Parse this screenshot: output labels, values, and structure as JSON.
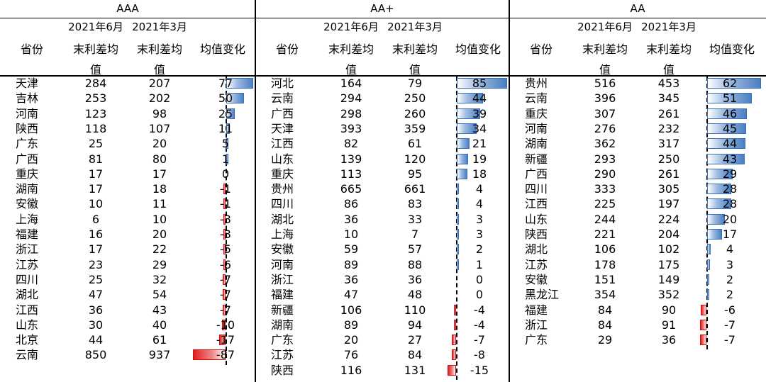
{
  "headers": {
    "date_jun": "2021年6月",
    "date_mar": "2021年3月",
    "province": "省份",
    "spread_1": "末利差均",
    "spread_2": "值",
    "change": "均值变化"
  },
  "colors": {
    "positive": "#4a7fc4",
    "negative": "#e11f1f"
  },
  "chart_data": [
    {
      "type": "table",
      "title": "AAA",
      "columns": [
        "省份",
        "2021年6月 末利差均值",
        "2021年3月 末利差均值",
        "均值变化"
      ],
      "xlim": [
        -87,
        77
      ],
      "rows": [
        {
          "province": "天津",
          "jun": 284,
          "mar": 207,
          "change": 77
        },
        {
          "province": "吉林",
          "jun": 253,
          "mar": 202,
          "change": 50
        },
        {
          "province": "河南",
          "jun": 123,
          "mar": 98,
          "change": 25
        },
        {
          "province": "陕西",
          "jun": 118,
          "mar": 107,
          "change": 11
        },
        {
          "province": "广东",
          "jun": 25,
          "mar": 20,
          "change": 5
        },
        {
          "province": "广西",
          "jun": 81,
          "mar": 80,
          "change": 1
        },
        {
          "province": "重庆",
          "jun": 17,
          "mar": 17,
          "change": 0
        },
        {
          "province": "湖南",
          "jun": 17,
          "mar": 18,
          "change": -1
        },
        {
          "province": "安徽",
          "jun": 10,
          "mar": 11,
          "change": -1
        },
        {
          "province": "上海",
          "jun": 6,
          "mar": 10,
          "change": -3
        },
        {
          "province": "福建",
          "jun": 16,
          "mar": 20,
          "change": -3
        },
        {
          "province": "浙江",
          "jun": 17,
          "mar": 22,
          "change": -5
        },
        {
          "province": "江苏",
          "jun": 23,
          "mar": 29,
          "change": -6
        },
        {
          "province": "四川",
          "jun": 25,
          "mar": 32,
          "change": -7
        },
        {
          "province": "湖北",
          "jun": 47,
          "mar": 54,
          "change": -7
        },
        {
          "province": "江西",
          "jun": 36,
          "mar": 43,
          "change": -7
        },
        {
          "province": "山东",
          "jun": 30,
          "mar": 40,
          "change": -10
        },
        {
          "province": "北京",
          "jun": 44,
          "mar": 61,
          "change": -17
        },
        {
          "province": "云南",
          "jun": 850,
          "mar": 937,
          "change": -87
        }
      ]
    },
    {
      "type": "table",
      "title": "AA+",
      "columns": [
        "省份",
        "2021年6月 末利差均值",
        "2021年3月 末利差均值",
        "均值变化"
      ],
      "xlim": [
        -15,
        85
      ],
      "rows": [
        {
          "province": "河北",
          "jun": 164,
          "mar": 79,
          "change": 85
        },
        {
          "province": "云南",
          "jun": 294,
          "mar": 250,
          "change": 44
        },
        {
          "province": "广西",
          "jun": 298,
          "mar": 260,
          "change": 39
        },
        {
          "province": "天津",
          "jun": 393,
          "mar": 359,
          "change": 34
        },
        {
          "province": "江西",
          "jun": 82,
          "mar": 61,
          "change": 21
        },
        {
          "province": "山东",
          "jun": 139,
          "mar": 120,
          "change": 19
        },
        {
          "province": "重庆",
          "jun": 113,
          "mar": 95,
          "change": 18
        },
        {
          "province": "贵州",
          "jun": 665,
          "mar": 661,
          "change": 4
        },
        {
          "province": "四川",
          "jun": 86,
          "mar": 83,
          "change": 4
        },
        {
          "province": "湖北",
          "jun": 36,
          "mar": 33,
          "change": 3
        },
        {
          "province": "上海",
          "jun": 10,
          "mar": 7,
          "change": 3
        },
        {
          "province": "安徽",
          "jun": 59,
          "mar": 57,
          "change": 2
        },
        {
          "province": "河南",
          "jun": 89,
          "mar": 88,
          "change": 1
        },
        {
          "province": "浙江",
          "jun": 36,
          "mar": 36,
          "change": 0
        },
        {
          "province": "福建",
          "jun": 47,
          "mar": 48,
          "change": 0
        },
        {
          "province": "新疆",
          "jun": 106,
          "mar": 110,
          "change": -4
        },
        {
          "province": "湖南",
          "jun": 89,
          "mar": 94,
          "change": -4
        },
        {
          "province": "广东",
          "jun": 20,
          "mar": 27,
          "change": -7
        },
        {
          "province": "江苏",
          "jun": 76,
          "mar": 84,
          "change": -8
        },
        {
          "province": "陕西",
          "jun": 116,
          "mar": 131,
          "change": -15
        }
      ]
    },
    {
      "type": "table",
      "title": "AA",
      "columns": [
        "省份",
        "2021年6月 末利差均值",
        "2021年3月 末利差均值",
        "均值变化"
      ],
      "xlim": [
        -7,
        62
      ],
      "rows": [
        {
          "province": "贵州",
          "jun": 516,
          "mar": 453,
          "change": 62
        },
        {
          "province": "云南",
          "jun": 396,
          "mar": 345,
          "change": 51
        },
        {
          "province": "重庆",
          "jun": 307,
          "mar": 261,
          "change": 46
        },
        {
          "province": "河南",
          "jun": 276,
          "mar": 232,
          "change": 45
        },
        {
          "province": "湖南",
          "jun": 362,
          "mar": 317,
          "change": 44
        },
        {
          "province": "新疆",
          "jun": 293,
          "mar": 250,
          "change": 43
        },
        {
          "province": "广西",
          "jun": 290,
          "mar": 261,
          "change": 29
        },
        {
          "province": "四川",
          "jun": 333,
          "mar": 305,
          "change": 28
        },
        {
          "province": "江西",
          "jun": 225,
          "mar": 197,
          "change": 28
        },
        {
          "province": "山东",
          "jun": 244,
          "mar": 224,
          "change": 20
        },
        {
          "province": "陕西",
          "jun": 221,
          "mar": 204,
          "change": 17
        },
        {
          "province": "湖北",
          "jun": 106,
          "mar": 102,
          "change": 4
        },
        {
          "province": "江苏",
          "jun": 178,
          "mar": 175,
          "change": 3
        },
        {
          "province": "安徽",
          "jun": 151,
          "mar": 149,
          "change": 2
        },
        {
          "province": "黑龙江",
          "jun": 354,
          "mar": 352,
          "change": 2
        },
        {
          "province": "福建",
          "jun": 84,
          "mar": 90,
          "change": -6
        },
        {
          "province": "浙江",
          "jun": 84,
          "mar": 91,
          "change": -7
        },
        {
          "province": "广东",
          "jun": 29,
          "mar": 36,
          "change": -7
        }
      ]
    }
  ]
}
